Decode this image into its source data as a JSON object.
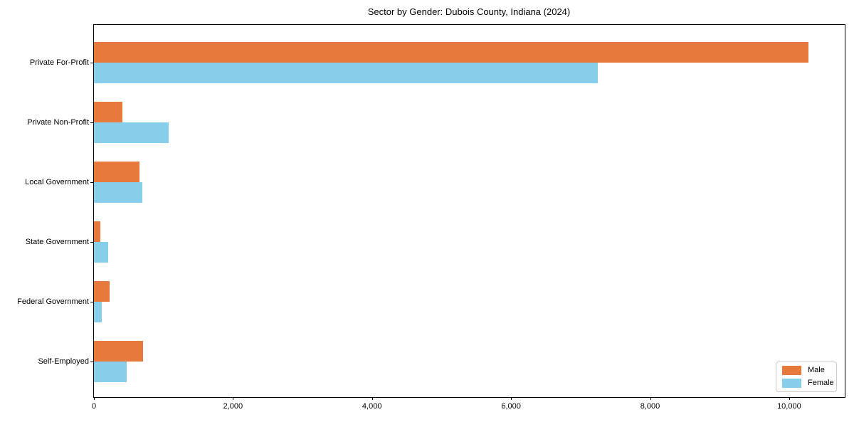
{
  "title": "Sector by Gender: Dubois County, Indiana (2024)",
  "legend": {
    "position": "lower right",
    "items": [
      {
        "label": "Male",
        "color": "#E8793C"
      },
      {
        "label": "Female",
        "color": "#87CEEB"
      }
    ]
  },
  "colors": {
    "male": "#E8793C",
    "female": "#87CEEB",
    "axis": "#000000",
    "background": "#FFFFFF",
    "legend_border": "#CCCCCC"
  },
  "chart_data": {
    "type": "bar",
    "orientation": "horizontal",
    "title": "Sector by Gender: Dubois County, Indiana (2024)",
    "categories": [
      "Private For-Profit",
      "Private Non-Profit",
      "Local Government",
      "State Government",
      "Federal Government",
      "Self-Employed"
    ],
    "series": [
      {
        "name": "Male",
        "color": "#E8793C",
        "values": [
          10280,
          410,
          650,
          90,
          220,
          710
        ]
      },
      {
        "name": "Female",
        "color": "#87CEEB",
        "values": [
          7250,
          1070,
          700,
          200,
          110,
          475
        ]
      }
    ],
    "xlabel": "",
    "ylabel": "",
    "xlim": [
      0,
      10800
    ],
    "xticks": [
      0,
      2000,
      4000,
      6000,
      8000,
      10000
    ],
    "xtick_labels": [
      "0",
      "2,000",
      "4,000",
      "6,000",
      "8,000",
      "10,000"
    ],
    "grid": false,
    "legend_position": "lower right"
  }
}
